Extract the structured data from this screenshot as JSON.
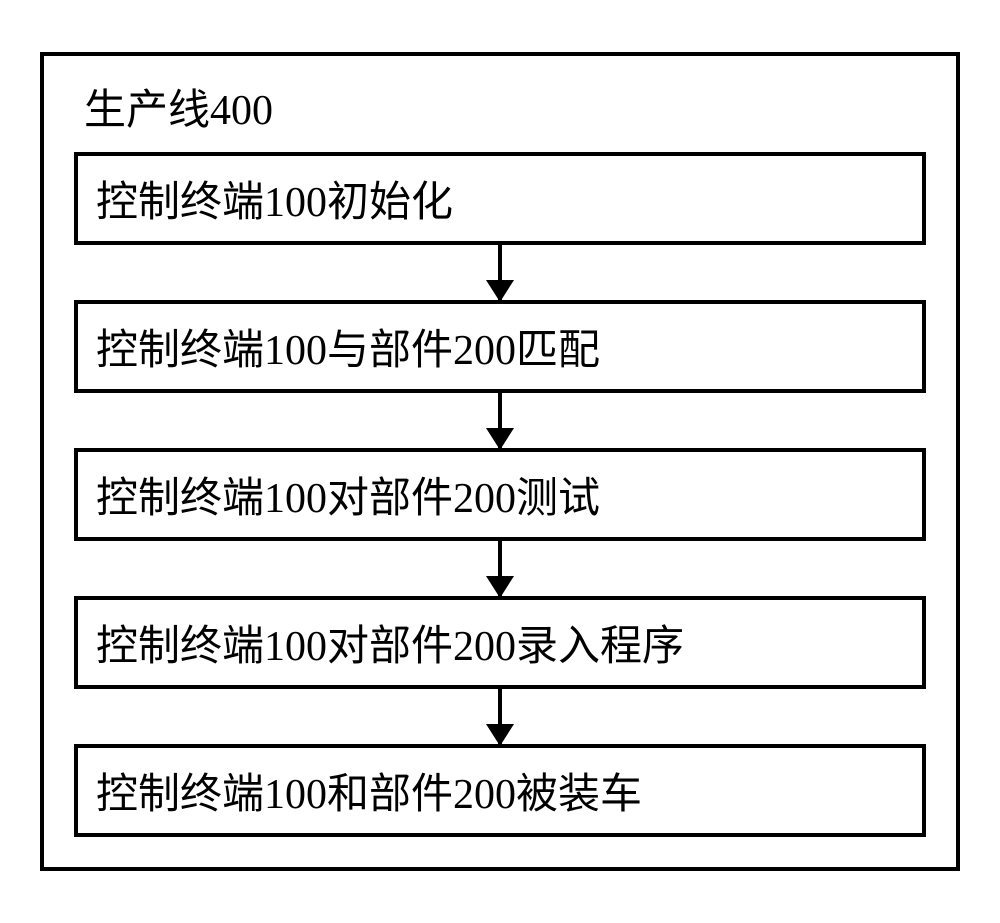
{
  "flowchart": {
    "type": "flowchart",
    "title": "生产线400",
    "steps": [
      "控制终端100初始化",
      "控制终端100与部件200匹配",
      "控制终端100对部件200测试",
      "控制终端100对部件200录入程序",
      "控制终端100和部件200被装车"
    ],
    "styling": {
      "border_color": "#000000",
      "border_width": 4,
      "background_color": "#ffffff",
      "text_color": "#000000",
      "font_family": "SimSun",
      "title_fontsize": 42,
      "step_fontsize": 42,
      "container_width": 920,
      "arrow_height": 55,
      "arrow_head_width": 28,
      "arrow_head_height": 22,
      "arrow_line_width": 4
    }
  }
}
